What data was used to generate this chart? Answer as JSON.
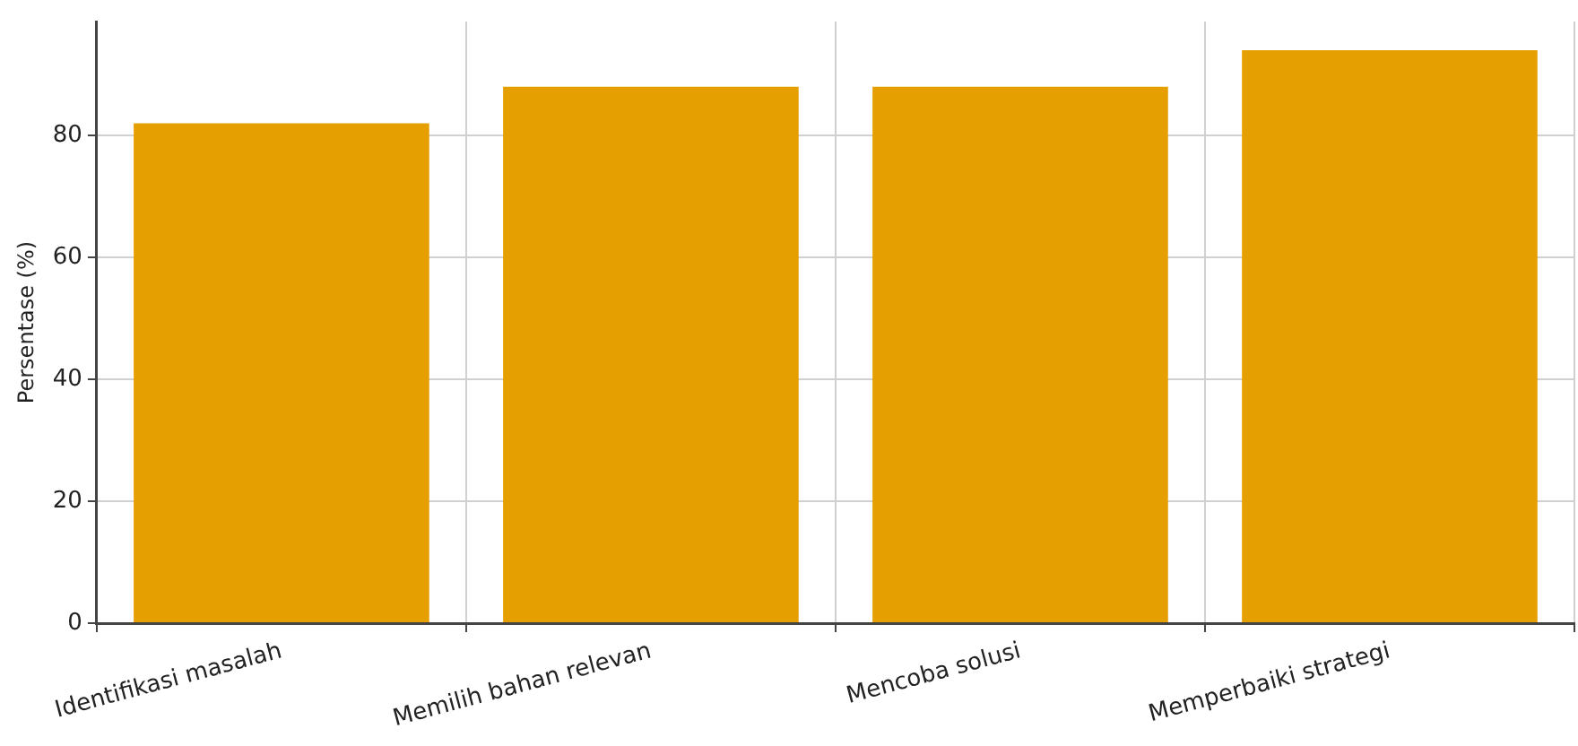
{
  "chart_data": {
    "type": "bar",
    "ylabel": "Persentase (%)",
    "categories": [
      "Identifikasi masalah",
      "Memilih bahan relevan",
      "Mencoba solusi",
      "Memperbaiki strategi"
    ],
    "values": [
      82,
      88,
      88,
      94
    ],
    "color": "#e69f00",
    "ylim": [
      0,
      98.7
    ],
    "yticks": [
      0,
      20,
      40,
      60,
      80
    ],
    "grid": true
  }
}
